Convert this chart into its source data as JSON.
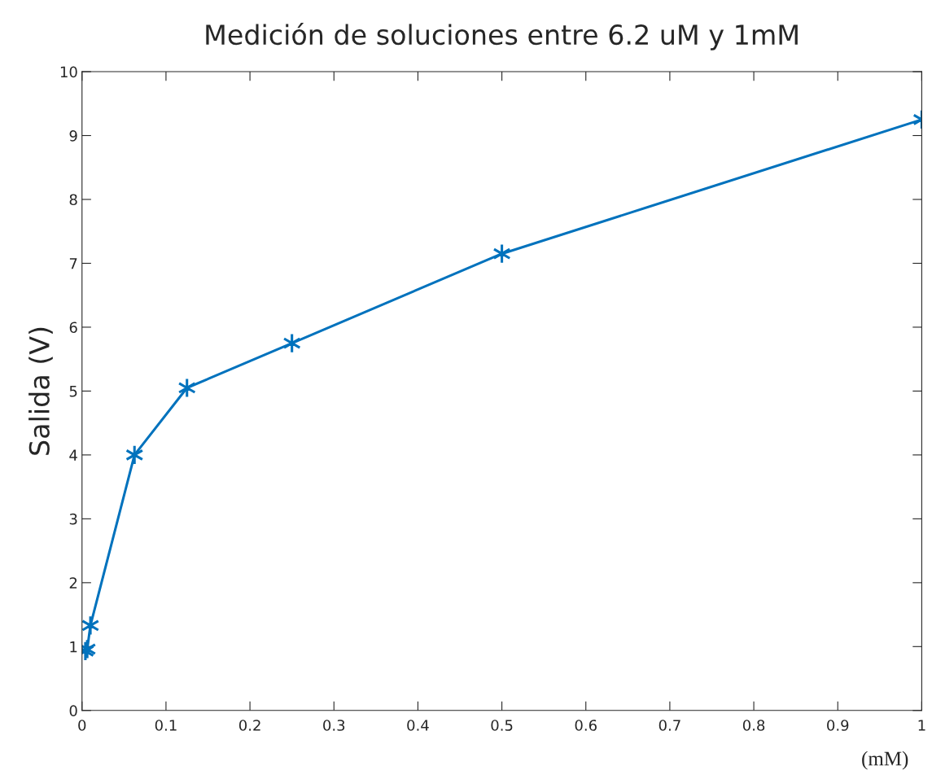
{
  "chart_data": {
    "type": "line",
    "title": "Medición de soluciones entre 6.2 uM y 1mM",
    "ylabel": "Salida (V)",
    "annotations": [
      "(mM)"
    ],
    "x": [
      0.004,
      0.0062,
      0.01,
      0.0625,
      0.125,
      0.25,
      0.5,
      1
    ],
    "values": [
      0.93,
      0.96,
      1.33,
      4.0,
      5.05,
      5.75,
      7.15,
      9.25
    ],
    "color": "#0072bd",
    "marker": "cross",
    "line_style": "solid",
    "xlim": [
      0,
      1
    ],
    "xticks": [
      0,
      0.1,
      0.2,
      0.3,
      0.4,
      0.5,
      0.6,
      0.7,
      0.8,
      0.9,
      1
    ],
    "ylim": [
      0,
      10
    ],
    "yticks": [
      0,
      1,
      2,
      3,
      4,
      5,
      6,
      7,
      8,
      9,
      10
    ],
    "grid": false,
    "legend": false
  }
}
